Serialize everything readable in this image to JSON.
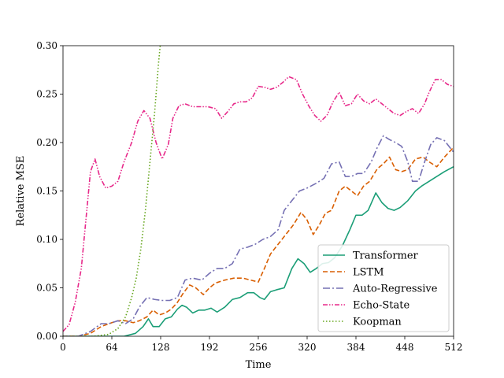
{
  "chart_data": {
    "type": "line",
    "title": "",
    "xlabel": "Time",
    "ylabel": "Relative MSE",
    "xlim": [
      0,
      512
    ],
    "ylim": [
      0,
      0.3
    ],
    "xticks": [
      0,
      64,
      128,
      192,
      256,
      320,
      384,
      448,
      512
    ],
    "yticks": [
      0.0,
      0.05,
      0.1,
      0.15,
      0.2,
      0.25,
      0.3
    ],
    "ytick_labels": [
      "0.00",
      "0.05",
      "0.10",
      "0.15",
      "0.20",
      "0.25",
      "0.30"
    ],
    "grid": false,
    "legend_position": "lower-right",
    "series": [
      {
        "name": "Transformer",
        "color": "#1b9e77",
        "dash": "solid",
        "points": [
          [
            0,
            0.0
          ],
          [
            40,
            0.0
          ],
          [
            80,
            0.0
          ],
          [
            95,
            0.003
          ],
          [
            105,
            0.01
          ],
          [
            112,
            0.018
          ],
          [
            118,
            0.01
          ],
          [
            126,
            0.01
          ],
          [
            134,
            0.018
          ],
          [
            142,
            0.02
          ],
          [
            150,
            0.028
          ],
          [
            156,
            0.032
          ],
          [
            162,
            0.03
          ],
          [
            170,
            0.024
          ],
          [
            178,
            0.027
          ],
          [
            186,
            0.027
          ],
          [
            194,
            0.029
          ],
          [
            202,
            0.025
          ],
          [
            212,
            0.03
          ],
          [
            222,
            0.038
          ],
          [
            232,
            0.04
          ],
          [
            242,
            0.045
          ],
          [
            250,
            0.045
          ],
          [
            258,
            0.04
          ],
          [
            264,
            0.038
          ],
          [
            272,
            0.046
          ],
          [
            280,
            0.048
          ],
          [
            290,
            0.05
          ],
          [
            300,
            0.07
          ],
          [
            308,
            0.08
          ],
          [
            316,
            0.075
          ],
          [
            324,
            0.066
          ],
          [
            332,
            0.07
          ],
          [
            340,
            0.075
          ],
          [
            348,
            0.076
          ],
          [
            356,
            0.081
          ],
          [
            366,
            0.093
          ],
          [
            376,
            0.11
          ],
          [
            384,
            0.125
          ],
          [
            392,
            0.125
          ],
          [
            400,
            0.13
          ],
          [
            410,
            0.148
          ],
          [
            418,
            0.138
          ],
          [
            426,
            0.132
          ],
          [
            434,
            0.13
          ],
          [
            442,
            0.133
          ],
          [
            452,
            0.14
          ],
          [
            462,
            0.15
          ],
          [
            470,
            0.155
          ],
          [
            480,
            0.16
          ],
          [
            490,
            0.165
          ],
          [
            500,
            0.17
          ],
          [
            512,
            0.175
          ]
        ]
      },
      {
        "name": "LSTM",
        "color": "#d95f02",
        "dash": "dashed",
        "points": [
          [
            0,
            0.0
          ],
          [
            20,
            0.0
          ],
          [
            36,
            0.003
          ],
          [
            50,
            0.01
          ],
          [
            64,
            0.014
          ],
          [
            72,
            0.016
          ],
          [
            82,
            0.016
          ],
          [
            92,
            0.014
          ],
          [
            100,
            0.016
          ],
          [
            110,
            0.02
          ],
          [
            118,
            0.027
          ],
          [
            126,
            0.022
          ],
          [
            134,
            0.024
          ],
          [
            142,
            0.028
          ],
          [
            150,
            0.035
          ],
          [
            158,
            0.045
          ],
          [
            166,
            0.053
          ],
          [
            174,
            0.05
          ],
          [
            184,
            0.043
          ],
          [
            192,
            0.05
          ],
          [
            200,
            0.055
          ],
          [
            212,
            0.058
          ],
          [
            224,
            0.06
          ],
          [
            236,
            0.06
          ],
          [
            246,
            0.058
          ],
          [
            256,
            0.056
          ],
          [
            264,
            0.07
          ],
          [
            272,
            0.085
          ],
          [
            282,
            0.095
          ],
          [
            292,
            0.105
          ],
          [
            302,
            0.115
          ],
          [
            312,
            0.128
          ],
          [
            320,
            0.12
          ],
          [
            328,
            0.105
          ],
          [
            336,
            0.115
          ],
          [
            344,
            0.127
          ],
          [
            352,
            0.13
          ],
          [
            362,
            0.15
          ],
          [
            370,
            0.155
          ],
          [
            378,
            0.15
          ],
          [
            386,
            0.145
          ],
          [
            394,
            0.155
          ],
          [
            402,
            0.16
          ],
          [
            412,
            0.173
          ],
          [
            420,
            0.178
          ],
          [
            428,
            0.185
          ],
          [
            436,
            0.172
          ],
          [
            444,
            0.17
          ],
          [
            452,
            0.172
          ],
          [
            462,
            0.183
          ],
          [
            472,
            0.185
          ],
          [
            480,
            0.18
          ],
          [
            490,
            0.175
          ],
          [
            500,
            0.185
          ],
          [
            512,
            0.195
          ]
        ]
      },
      {
        "name": "Auto-Regressive",
        "color": "#7570b3",
        "dash": "dashdot",
        "points": [
          [
            0,
            0.0
          ],
          [
            20,
            0.0
          ],
          [
            36,
            0.005
          ],
          [
            50,
            0.013
          ],
          [
            60,
            0.013
          ],
          [
            72,
            0.016
          ],
          [
            82,
            0.013
          ],
          [
            92,
            0.018
          ],
          [
            100,
            0.03
          ],
          [
            110,
            0.04
          ],
          [
            120,
            0.038
          ],
          [
            130,
            0.037
          ],
          [
            140,
            0.037
          ],
          [
            150,
            0.04
          ],
          [
            160,
            0.058
          ],
          [
            170,
            0.06
          ],
          [
            182,
            0.058
          ],
          [
            192,
            0.065
          ],
          [
            202,
            0.07
          ],
          [
            212,
            0.07
          ],
          [
            222,
            0.075
          ],
          [
            232,
            0.09
          ],
          [
            242,
            0.092
          ],
          [
            252,
            0.095
          ],
          [
            262,
            0.1
          ],
          [
            272,
            0.103
          ],
          [
            282,
            0.11
          ],
          [
            290,
            0.13
          ],
          [
            300,
            0.14
          ],
          [
            310,
            0.15
          ],
          [
            320,
            0.153
          ],
          [
            332,
            0.158
          ],
          [
            342,
            0.163
          ],
          [
            352,
            0.178
          ],
          [
            362,
            0.18
          ],
          [
            370,
            0.165
          ],
          [
            378,
            0.165
          ],
          [
            386,
            0.168
          ],
          [
            394,
            0.168
          ],
          [
            404,
            0.18
          ],
          [
            412,
            0.195
          ],
          [
            420,
            0.207
          ],
          [
            428,
            0.203
          ],
          [
            436,
            0.2
          ],
          [
            444,
            0.196
          ],
          [
            452,
            0.18
          ],
          [
            458,
            0.16
          ],
          [
            466,
            0.16
          ],
          [
            474,
            0.18
          ],
          [
            482,
            0.198
          ],
          [
            490,
            0.205
          ],
          [
            500,
            0.202
          ],
          [
            512,
            0.19
          ]
        ]
      },
      {
        "name": "Echo-State",
        "color": "#e7298a",
        "dash": "dashdotdot",
        "points": [
          [
            0,
            0.005
          ],
          [
            8,
            0.012
          ],
          [
            16,
            0.035
          ],
          [
            24,
            0.07
          ],
          [
            30,
            0.12
          ],
          [
            36,
            0.17
          ],
          [
            42,
            0.183
          ],
          [
            48,
            0.165
          ],
          [
            56,
            0.153
          ],
          [
            64,
            0.155
          ],
          [
            72,
            0.16
          ],
          [
            80,
            0.18
          ],
          [
            90,
            0.2
          ],
          [
            98,
            0.222
          ],
          [
            106,
            0.233
          ],
          [
            114,
            0.225
          ],
          [
            122,
            0.2
          ],
          [
            130,
            0.183
          ],
          [
            138,
            0.198
          ],
          [
            144,
            0.225
          ],
          [
            152,
            0.238
          ],
          [
            160,
            0.24
          ],
          [
            170,
            0.237
          ],
          [
            180,
            0.237
          ],
          [
            190,
            0.237
          ],
          [
            200,
            0.235
          ],
          [
            208,
            0.225
          ],
          [
            216,
            0.232
          ],
          [
            224,
            0.24
          ],
          [
            232,
            0.242
          ],
          [
            240,
            0.242
          ],
          [
            248,
            0.246
          ],
          [
            256,
            0.258
          ],
          [
            264,
            0.257
          ],
          [
            272,
            0.255
          ],
          [
            280,
            0.257
          ],
          [
            288,
            0.262
          ],
          [
            296,
            0.268
          ],
          [
            306,
            0.265
          ],
          [
            314,
            0.25
          ],
          [
            322,
            0.238
          ],
          [
            330,
            0.228
          ],
          [
            338,
            0.222
          ],
          [
            346,
            0.228
          ],
          [
            354,
            0.242
          ],
          [
            362,
            0.252
          ],
          [
            370,
            0.238
          ],
          [
            378,
            0.24
          ],
          [
            386,
            0.25
          ],
          [
            394,
            0.243
          ],
          [
            402,
            0.24
          ],
          [
            410,
            0.245
          ],
          [
            418,
            0.24
          ],
          [
            426,
            0.235
          ],
          [
            434,
            0.23
          ],
          [
            442,
            0.228
          ],
          [
            450,
            0.232
          ],
          [
            458,
            0.235
          ],
          [
            466,
            0.23
          ],
          [
            474,
            0.24
          ],
          [
            480,
            0.252
          ],
          [
            488,
            0.265
          ],
          [
            496,
            0.265
          ],
          [
            504,
            0.26
          ],
          [
            512,
            0.258
          ]
        ]
      },
      {
        "name": "Koopman",
        "color": "#66a61e",
        "dash": "dotted",
        "points": [
          [
            0,
            0.0
          ],
          [
            40,
            0.0
          ],
          [
            60,
            0.002
          ],
          [
            72,
            0.008
          ],
          [
            82,
            0.02
          ],
          [
            90,
            0.04
          ],
          [
            96,
            0.06
          ],
          [
            102,
            0.09
          ],
          [
            108,
            0.13
          ],
          [
            114,
            0.18
          ],
          [
            120,
            0.23
          ],
          [
            125,
            0.28
          ],
          [
            128,
            0.305
          ]
        ]
      }
    ]
  }
}
